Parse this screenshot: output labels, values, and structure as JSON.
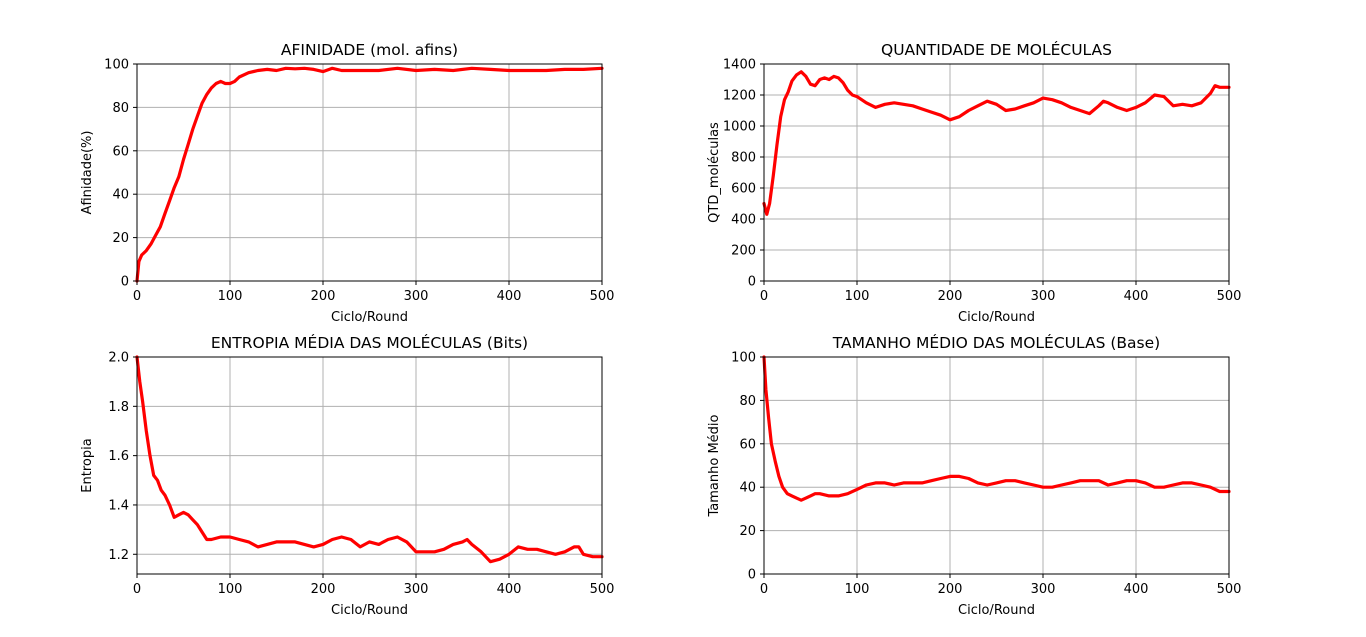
{
  "figure": {
    "background": "#ffffff",
    "line_color": "#ff0000",
    "grid_color": "#b0b0b0"
  },
  "chart_data": [
    {
      "type": "line",
      "title": "AFINIDADE (mol. afins)",
      "xlabel": "Ciclo/Round",
      "ylabel": "Afinidade(%)",
      "xlim": [
        0,
        500
      ],
      "ylim": [
        0,
        100
      ],
      "xticks": [
        0,
        100,
        200,
        300,
        400,
        500
      ],
      "yticks": [
        0,
        20,
        40,
        60,
        80,
        100
      ],
      "grid": true,
      "series": [
        {
          "color": "#ff0000",
          "x": [
            0,
            2,
            5,
            10,
            15,
            20,
            25,
            30,
            35,
            40,
            45,
            50,
            55,
            60,
            65,
            70,
            75,
            80,
            85,
            90,
            95,
            100,
            105,
            110,
            120,
            130,
            140,
            150,
            160,
            170,
            180,
            190,
            200,
            210,
            220,
            240,
            260,
            280,
            300,
            320,
            340,
            360,
            380,
            400,
            420,
            440,
            460,
            480,
            500
          ],
          "y": [
            0,
            9,
            12,
            14,
            17,
            21,
            25,
            31,
            37,
            43,
            48,
            56,
            63,
            70,
            76,
            82,
            86,
            89,
            91,
            92,
            91,
            91,
            92,
            94,
            96,
            97,
            97.5,
            97,
            98,
            97.8,
            98,
            97.5,
            96.5,
            98,
            97,
            97,
            97,
            98,
            97,
            97.5,
            97,
            98,
            97.5,
            97,
            97,
            97,
            97.5,
            97.5,
            98
          ]
        }
      ]
    },
    {
      "type": "line",
      "title": "QUANTIDADE DE MOLÉCULAS",
      "xlabel": "Ciclo/Round",
      "ylabel": "QTD_moléculas",
      "xlim": [
        0,
        500
      ],
      "ylim": [
        0,
        1400
      ],
      "xticks": [
        0,
        100,
        200,
        300,
        400,
        500
      ],
      "yticks": [
        0,
        200,
        400,
        600,
        800,
        1000,
        1200,
        1400
      ],
      "grid": true,
      "series": [
        {
          "color": "#ff0000",
          "x": [
            0,
            3,
            6,
            10,
            14,
            18,
            22,
            26,
            30,
            35,
            40,
            45,
            50,
            55,
            60,
            65,
            70,
            75,
            80,
            85,
            90,
            95,
            100,
            110,
            120,
            130,
            140,
            150,
            160,
            170,
            180,
            190,
            200,
            210,
            220,
            230,
            240,
            250,
            260,
            270,
            280,
            290,
            300,
            310,
            320,
            330,
            340,
            350,
            360,
            365,
            370,
            380,
            390,
            400,
            410,
            420,
            430,
            440,
            450,
            460,
            470,
            480,
            485,
            490,
            500
          ],
          "y": [
            500,
            430,
            500,
            680,
            880,
            1060,
            1170,
            1220,
            1290,
            1330,
            1350,
            1320,
            1270,
            1260,
            1300,
            1310,
            1300,
            1320,
            1310,
            1280,
            1230,
            1200,
            1190,
            1150,
            1120,
            1140,
            1150,
            1140,
            1130,
            1110,
            1090,
            1070,
            1040,
            1060,
            1100,
            1130,
            1160,
            1140,
            1100,
            1110,
            1130,
            1150,
            1180,
            1170,
            1150,
            1120,
            1100,
            1080,
            1130,
            1160,
            1150,
            1120,
            1100,
            1120,
            1150,
            1200,
            1190,
            1130,
            1140,
            1130,
            1150,
            1210,
            1260,
            1250,
            1250
          ]
        }
      ]
    },
    {
      "type": "line",
      "title": "ENTROPIA MÉDIA DAS MOLÉCULAS (Bits)",
      "xlabel": "Ciclo/Round",
      "ylabel": "Entropia",
      "xlim": [
        0,
        500
      ],
      "ylim": [
        1.12,
        2.0
      ],
      "xticks": [
        0,
        100,
        200,
        300,
        400,
        500
      ],
      "yticks": [
        1.2,
        1.4,
        1.6,
        1.8,
        2.0
      ],
      "ytick_labels": [
        "1.2",
        "1.4",
        "1.6",
        "1.8",
        "2.0"
      ],
      "grid": true,
      "series": [
        {
          "color": "#ff0000",
          "x": [
            0,
            3,
            6,
            10,
            14,
            18,
            22,
            26,
            30,
            35,
            40,
            45,
            50,
            55,
            60,
            65,
            70,
            75,
            80,
            90,
            100,
            110,
            120,
            130,
            140,
            150,
            160,
            170,
            180,
            190,
            200,
            210,
            220,
            230,
            240,
            250,
            260,
            270,
            280,
            290,
            300,
            310,
            320,
            330,
            340,
            350,
            355,
            360,
            370,
            380,
            390,
            400,
            410,
            420,
            430,
            440,
            450,
            460,
            470,
            475,
            480,
            490,
            500
          ],
          "y": [
            2.0,
            1.9,
            1.82,
            1.7,
            1.6,
            1.52,
            1.5,
            1.46,
            1.44,
            1.4,
            1.35,
            1.36,
            1.37,
            1.36,
            1.34,
            1.32,
            1.29,
            1.26,
            1.26,
            1.27,
            1.27,
            1.26,
            1.25,
            1.23,
            1.24,
            1.25,
            1.25,
            1.25,
            1.24,
            1.23,
            1.24,
            1.26,
            1.27,
            1.26,
            1.23,
            1.25,
            1.24,
            1.26,
            1.27,
            1.25,
            1.21,
            1.21,
            1.21,
            1.22,
            1.24,
            1.25,
            1.26,
            1.24,
            1.21,
            1.17,
            1.18,
            1.2,
            1.23,
            1.22,
            1.22,
            1.21,
            1.2,
            1.21,
            1.23,
            1.23,
            1.2,
            1.19,
            1.19
          ]
        }
      ]
    },
    {
      "type": "line",
      "title": "TAMANHO MÉDIO DAS MOLÉCULAS (Base)",
      "xlabel": "Ciclo/Round",
      "ylabel": "Tamanho Médio",
      "xlim": [
        0,
        500
      ],
      "ylim": [
        0,
        100
      ],
      "xticks": [
        0,
        100,
        200,
        300,
        400,
        500
      ],
      "yticks": [
        0,
        20,
        40,
        60,
        80,
        100
      ],
      "grid": true,
      "series": [
        {
          "color": "#ff0000",
          "x": [
            0,
            2,
            5,
            8,
            12,
            16,
            20,
            25,
            30,
            35,
            40,
            45,
            50,
            55,
            60,
            70,
            80,
            90,
            100,
            110,
            120,
            130,
            140,
            150,
            160,
            170,
            180,
            190,
            200,
            210,
            220,
            230,
            240,
            250,
            260,
            270,
            280,
            290,
            300,
            310,
            320,
            330,
            340,
            350,
            360,
            370,
            380,
            390,
            400,
            410,
            420,
            430,
            440,
            450,
            460,
            470,
            480,
            490,
            500
          ],
          "y": [
            100,
            85,
            72,
            60,
            52,
            45,
            40,
            37,
            36,
            35,
            34,
            35,
            36,
            37,
            37,
            36,
            36,
            37,
            39,
            41,
            42,
            42,
            41,
            42,
            42,
            42,
            43,
            44,
            45,
            45,
            44,
            42,
            41,
            42,
            43,
            43,
            42,
            41,
            40,
            40,
            41,
            42,
            43,
            43,
            43,
            41,
            42,
            43,
            43,
            42,
            40,
            40,
            41,
            42,
            42,
            41,
            40,
            38,
            38
          ]
        }
      ]
    }
  ]
}
